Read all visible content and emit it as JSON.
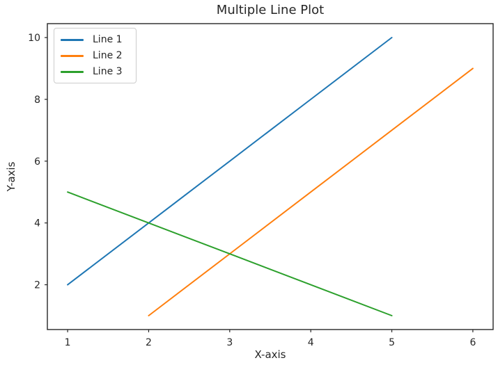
{
  "figure": {
    "background": "#ffffff",
    "axis_color": "#262626",
    "text_color": "#262626",
    "legend_border_color": "#cccccc"
  },
  "chart_data": {
    "type": "line",
    "title": "Multiple Line Plot",
    "xlabel": "X-axis",
    "ylabel": "Y-axis",
    "xlim": [
      0.75,
      6.25
    ],
    "ylim": [
      0.55,
      10.45
    ],
    "x_ticks": [
      1,
      2,
      3,
      4,
      5,
      6
    ],
    "y_ticks": [
      2,
      4,
      6,
      8,
      10
    ],
    "grid": false,
    "legend": {
      "position": "upper-left",
      "entries": [
        "Line 1",
        "Line 2",
        "Line 3"
      ]
    },
    "series": [
      {
        "name": "Line 1",
        "color": "#1f77b4",
        "x": [
          1,
          2,
          3,
          4,
          5
        ],
        "y": [
          2,
          4,
          6,
          8,
          10
        ]
      },
      {
        "name": "Line 2",
        "color": "#ff7f0e",
        "x": [
          2,
          3,
          4,
          5,
          6
        ],
        "y": [
          1,
          3,
          5,
          7,
          9
        ]
      },
      {
        "name": "Line 3",
        "color": "#2ca02c",
        "x": [
          1,
          2,
          3,
          4,
          5
        ],
        "y": [
          5,
          4,
          3,
          2,
          1
        ]
      }
    ]
  }
}
